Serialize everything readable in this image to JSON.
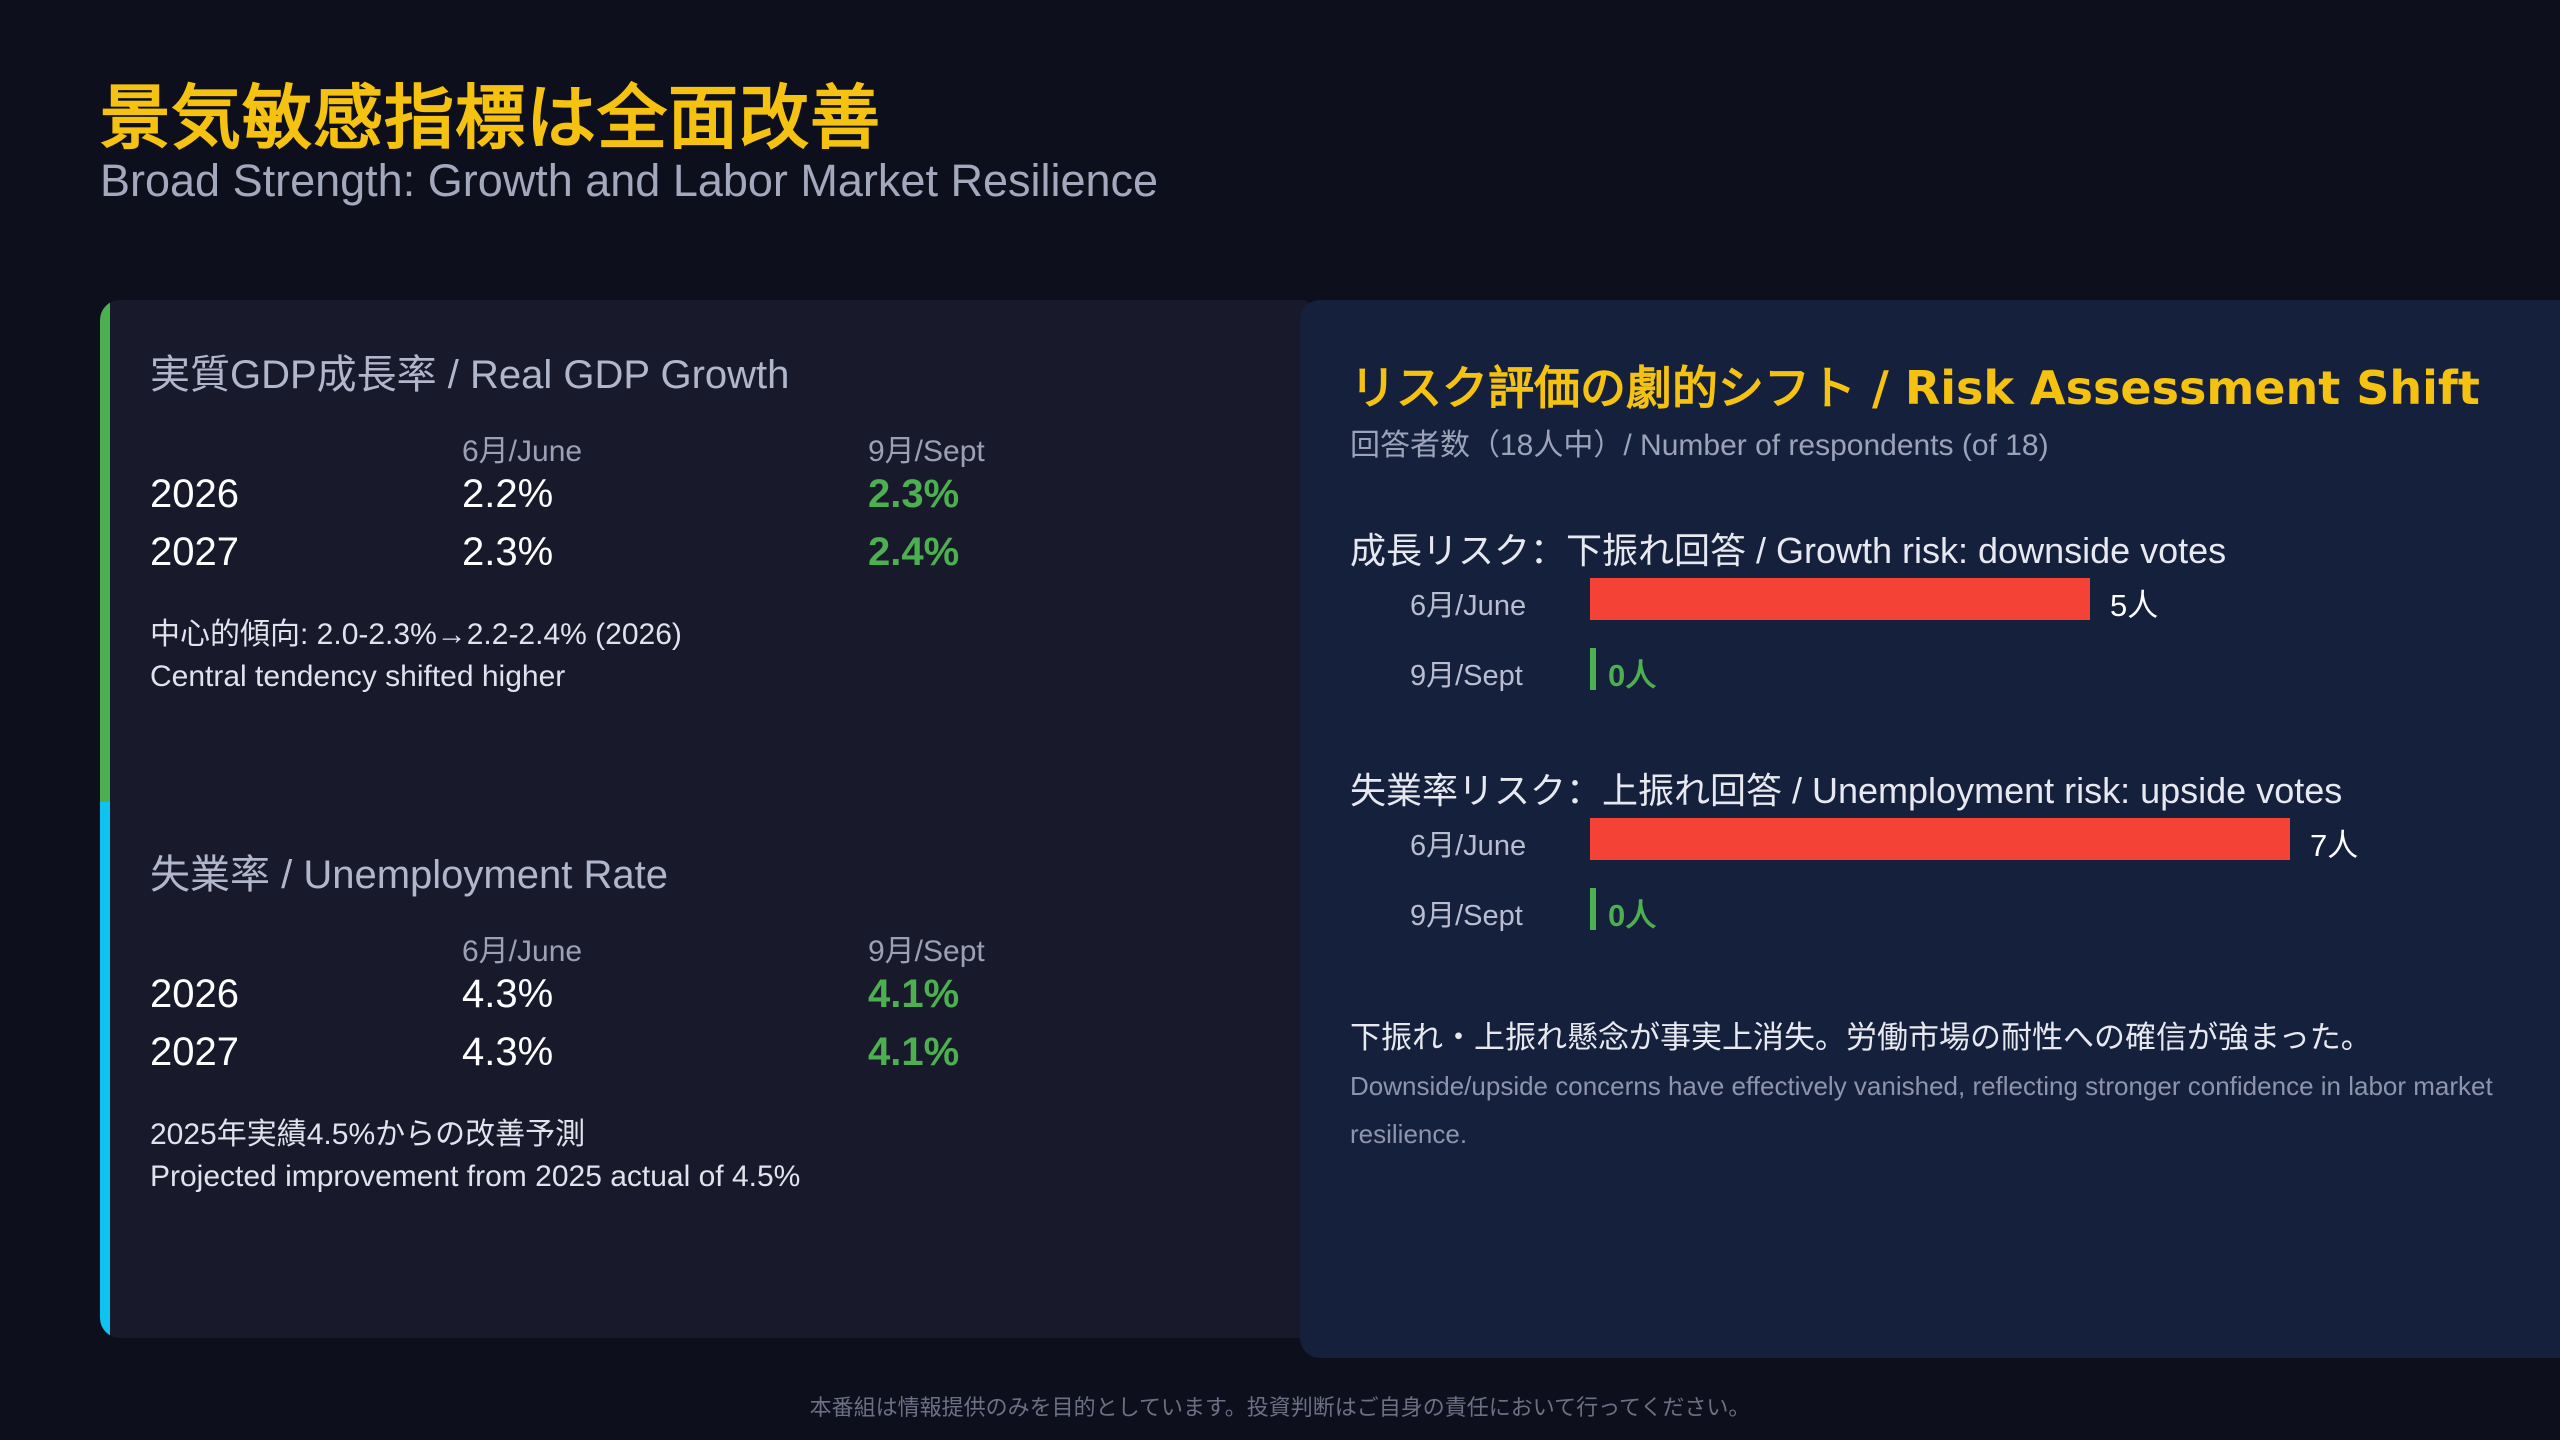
{
  "header": {
    "title": "景気敏感指標は全面改善",
    "subtitle": "Broad Strength: Growth and Labor Market Resilience"
  },
  "gdp": {
    "title": "実質GDP成長率 / Real GDP Growth",
    "col_june": "6月/June",
    "col_sept": "9月/Sept",
    "rows": [
      {
        "year": "2026",
        "june": "2.2%",
        "sept": "2.3%"
      },
      {
        "year": "2027",
        "june": "2.3%",
        "sept": "2.4%"
      }
    ],
    "note_jp": "中心的傾向: 2.0-2.3%→2.2-2.4% (2026)",
    "note_en": "Central tendency shifted higher"
  },
  "unemployment": {
    "title": "失業率 / Unemployment Rate",
    "col_june": "6月/June",
    "col_sept": "9月/Sept",
    "rows": [
      {
        "year": "2026",
        "june": "4.3%",
        "sept": "4.1%"
      },
      {
        "year": "2027",
        "june": "4.3%",
        "sept": "4.1%"
      }
    ],
    "note_jp": "2025年実績4.5%からの改善予測",
    "note_en": "Projected improvement from 2025 actual of 4.5%"
  },
  "risk": {
    "title": "リスク評価の劇的シフト / Risk Assessment Shift",
    "subtitle": "回答者数（18人中）/ Number of respondents (of 18)",
    "conclusion_jp": "下振れ・上振れ懸念が事実上消失。労働市場の耐性への確信が強まった。",
    "conclusion_en": "Downside/upside concerns have effectively vanished, reflecting stronger confidence in labor market resilience."
  },
  "chart_data": {
    "type": "bar",
    "orientation": "horizontal",
    "title": "リスク評価の劇的シフト / Risk Assessment Shift",
    "subtitle": "回答者数（18人中）/ Number of respondents (of 18)",
    "categories": [
      "6月/June",
      "9月/Sept"
    ],
    "unit": "人",
    "groups": [
      {
        "name": "成長リスク：下振れ回答 / Growth risk: downside votes",
        "values": [
          5,
          0
        ],
        "labels": [
          "5人",
          "0人"
        ]
      },
      {
        "name": "失業率リスク：上振れ回答 / Unemployment risk: upside votes",
        "values": [
          7,
          0
        ],
        "labels": [
          "7人",
          "0人"
        ]
      }
    ],
    "colors": {
      "june": "#f44336",
      "sept": "#4caf50"
    }
  },
  "colors": {
    "accent": "#f5c211",
    "positive": "#4caf50",
    "negative": "#f44336",
    "gdp_stripe": "#4caf50",
    "unemployment_stripe": "#0fc3f0"
  },
  "footer": "本番組は情報提供のみを目的としています。投資判断はご自身の責任において行ってください。"
}
